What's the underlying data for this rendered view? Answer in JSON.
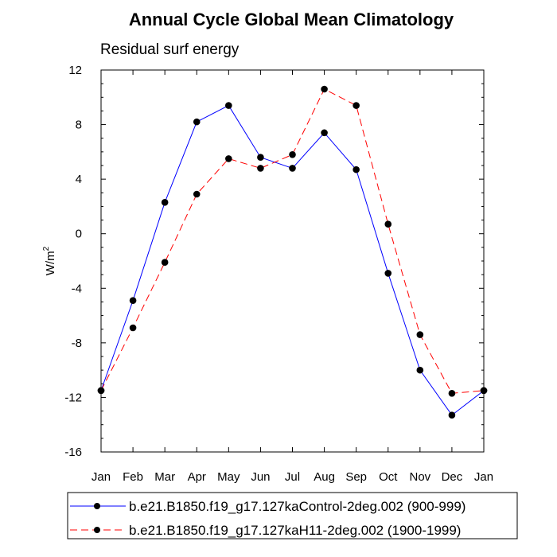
{
  "chart_data": {
    "type": "line",
    "title": "Annual Cycle Global Mean Climatology",
    "subtitle": "Residual surf energy",
    "ylabel_base": "W/m",
    "ylabel_sup": "2",
    "categories": [
      "Jan",
      "Feb",
      "Mar",
      "Apr",
      "May",
      "Jun",
      "Jul",
      "Aug",
      "Sep",
      "Oct",
      "Nov",
      "Dec",
      "Jan"
    ],
    "ylim": [
      -16,
      12
    ],
    "yticks": [
      "12",
      "8",
      "4",
      "0",
      "-4",
      "-8",
      "-12",
      "-16"
    ],
    "ytick_values": [
      12,
      8,
      4,
      0,
      -4,
      -8,
      -12,
      -16
    ],
    "series": [
      {
        "name": "b.e21.B1850.f19_g17.127kaControl-2deg.002 (900-999)",
        "color": "#0000ff",
        "dash": "solid",
        "values": [
          -11.5,
          -4.9,
          2.3,
          8.2,
          9.4,
          5.6,
          4.8,
          7.4,
          4.7,
          -2.9,
          -10.0,
          -13.3,
          -11.5
        ]
      },
      {
        "name": "b.e21.B1850.f19_g17.127kaH11-2deg.002 (1900-1999)",
        "color": "#ff0000",
        "dash": "dashed",
        "values": [
          -11.5,
          -6.9,
          -2.1,
          2.9,
          5.5,
          4.8,
          5.8,
          10.6,
          9.4,
          0.7,
          -7.4,
          -11.7,
          -11.5
        ]
      }
    ]
  }
}
